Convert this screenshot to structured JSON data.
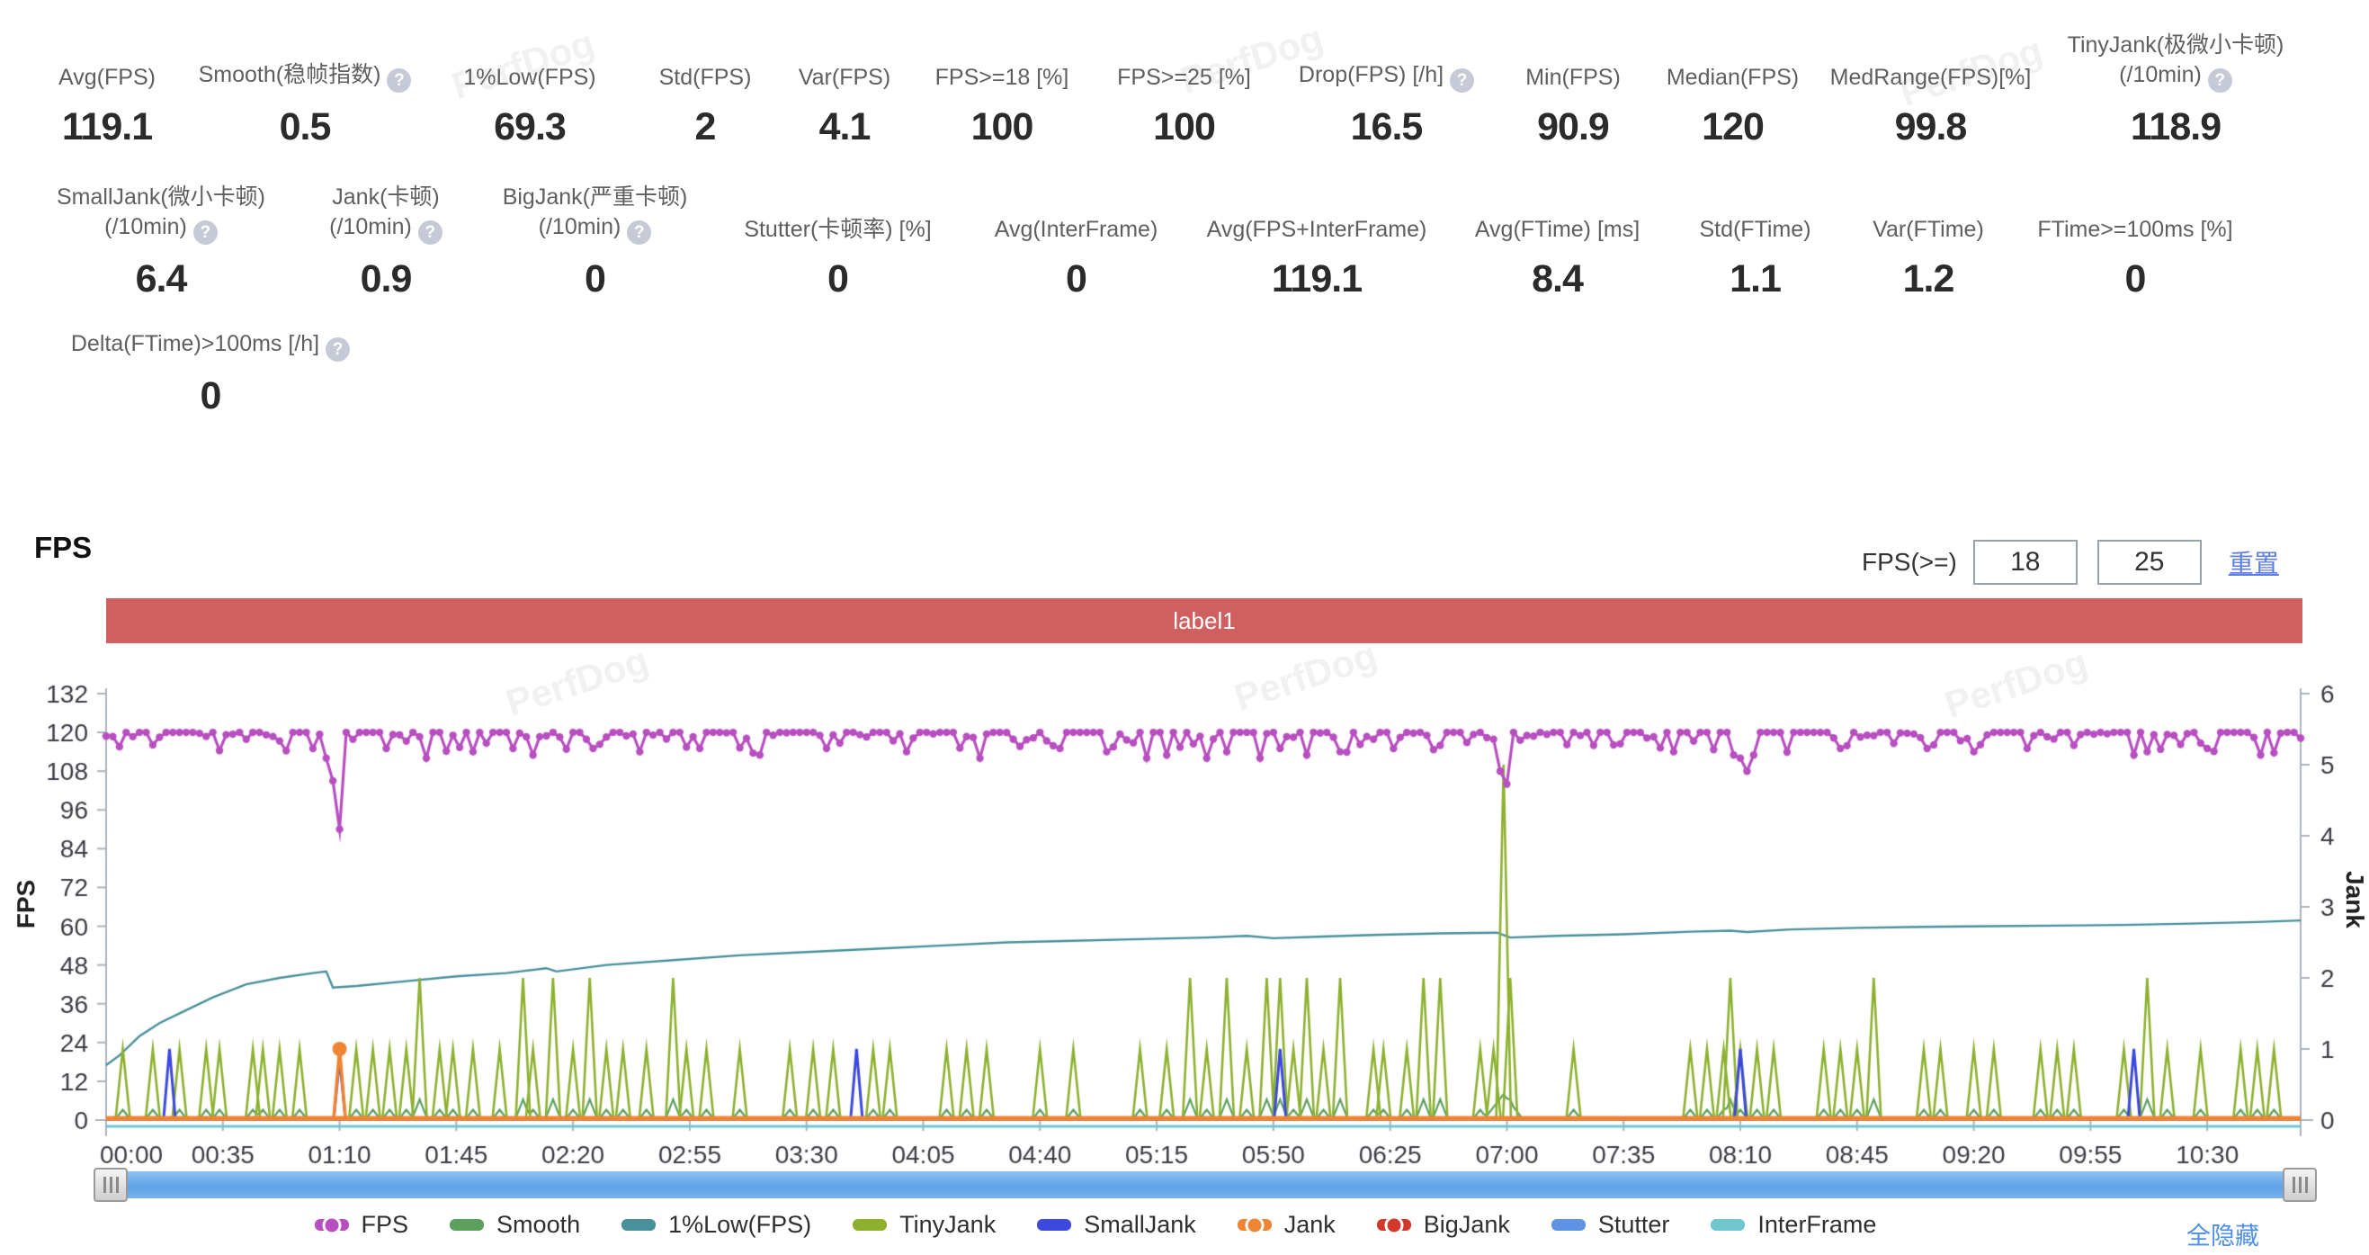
{
  "watermark_text": "PerfDog",
  "stats_row1": [
    {
      "label": "Avg(FPS)",
      "value": "119.1"
    },
    {
      "label": "Smooth(稳帧指数)",
      "help": true,
      "value": "0.5"
    },
    {
      "label": "1%Low(FPS)",
      "value": "69.3"
    },
    {
      "label": "Std(FPS)",
      "value": "2"
    },
    {
      "label": "Var(FPS)",
      "value": "4.1"
    },
    {
      "label": "FPS>=18 [%]",
      "value": "100"
    },
    {
      "label": "FPS>=25 [%]",
      "value": "100"
    },
    {
      "label": "Drop(FPS) [/h]",
      "help": true,
      "value": "16.5"
    },
    {
      "label": "Min(FPS)",
      "value": "90.9"
    },
    {
      "label": "Median(FPS)",
      "value": "120"
    },
    {
      "label": "MedRange(FPS)[%]",
      "value": "99.8"
    },
    {
      "label": "TinyJank(极微小卡顿)",
      "label2": "(/10min)",
      "help": true,
      "value": "118.9"
    }
  ],
  "stats_row2": [
    {
      "label": "SmallJank(微小卡顿)",
      "label2": "(/10min)",
      "help": true,
      "value": "6.4"
    },
    {
      "label": "Jank(卡顿)",
      "label2": "(/10min)",
      "help": true,
      "value": "0.9"
    },
    {
      "label": "BigJank(严重卡顿)",
      "label2": "(/10min)",
      "help": true,
      "value": "0"
    },
    {
      "label": "Stutter(卡顿率) [%]",
      "value": "0"
    },
    {
      "label": "Avg(InterFrame)",
      "value": "0"
    },
    {
      "label": "Avg(FPS+InterFrame)",
      "value": "119.1"
    },
    {
      "label": "Avg(FTime) [ms]",
      "value": "8.4"
    },
    {
      "label": "Std(FTime)",
      "value": "1.1"
    },
    {
      "label": "Var(FTime)",
      "value": "1.2"
    },
    {
      "label": "FTime>=100ms [%]",
      "value": "0"
    }
  ],
  "stats_row3": [
    {
      "label": "Delta(FTime)>100ms [/h]",
      "help": true,
      "value": "0"
    }
  ],
  "fps_section": {
    "title": "FPS",
    "filter_label": "FPS(>=)",
    "threshold1": "18",
    "threshold2": "25",
    "reset_label": "重置",
    "banner_label": "label1",
    "hide_all_label": "全隐藏"
  },
  "chart_data": {
    "type": "line",
    "title": "label1",
    "x_axis": {
      "tick_interval_s": 35,
      "range_s": [
        0,
        658
      ],
      "tick_labels": [
        "00:00",
        "00:35",
        "01:10",
        "01:45",
        "02:20",
        "02:55",
        "03:30",
        "04:05",
        "04:40",
        "05:15",
        "05:50",
        "06:25",
        "07:00",
        "07:35",
        "08:10",
        "08:45",
        "09:20",
        "09:55",
        "10:30"
      ]
    },
    "y_axis_left": {
      "label": "FPS",
      "range": [
        0,
        132
      ],
      "tick_step": 12
    },
    "y_axis_right": {
      "label": "Jank",
      "range": [
        0,
        6
      ],
      "tick_step": 1
    },
    "series": [
      {
        "name": "FPS",
        "color": "#b84fc0",
        "axis": "left",
        "style": "line+markers",
        "legend_marker": true,
        "base": 120,
        "sample_step_s": 2,
        "seed": 11,
        "dips": [
          [
            62,
            115
          ],
          [
            66,
            112
          ],
          [
            68,
            105
          ],
          [
            70,
            90
          ],
          [
            84,
            115
          ],
          [
            95,
            112
          ],
          [
            110,
            114
          ],
          [
            122,
            115
          ],
          [
            128,
            113
          ],
          [
            145,
            115
          ],
          [
            160,
            114
          ],
          [
            178,
            115
          ],
          [
            195,
            113
          ],
          [
            215,
            115
          ],
          [
            240,
            114
          ],
          [
            262,
            112
          ],
          [
            285,
            115
          ],
          [
            300,
            114
          ],
          [
            312,
            112
          ],
          [
            318,
            113
          ],
          [
            330,
            112
          ],
          [
            336,
            114
          ],
          [
            345,
            112
          ],
          [
            352,
            115
          ],
          [
            360,
            113
          ],
          [
            370,
            114
          ],
          [
            385,
            115
          ],
          [
            400,
            116
          ],
          [
            418,
            108
          ],
          [
            420,
            104
          ],
          [
            445,
            116
          ],
          [
            470,
            114
          ],
          [
            487,
            113
          ],
          [
            489,
            112
          ],
          [
            491,
            108
          ],
          [
            493,
            113
          ],
          [
            520,
            115
          ],
          [
            545,
            115
          ],
          [
            560,
            114
          ],
          [
            575,
            115
          ],
          [
            590,
            116
          ],
          [
            608,
            113
          ],
          [
            612,
            114
          ],
          [
            630,
            115
          ],
          [
            645,
            113
          ]
        ]
      },
      {
        "name": "Smooth",
        "color": "#5ca05e",
        "axis": "left",
        "style": "line",
        "base": 0.3,
        "bump_height": 3.2,
        "humps": [
          [
            419,
            8
          ]
        ]
      },
      {
        "name": "1%Low(FPS)",
        "color": "#48909a",
        "axis": "left",
        "style": "line",
        "points": [
          [
            0,
            17
          ],
          [
            4,
            20
          ],
          [
            10,
            26
          ],
          [
            16,
            30
          ],
          [
            24,
            34
          ],
          [
            32,
            38
          ],
          [
            42,
            42
          ],
          [
            52,
            44
          ],
          [
            62,
            45.5
          ],
          [
            66,
            46
          ],
          [
            68,
            41
          ],
          [
            75,
            41.5
          ],
          [
            90,
            43
          ],
          [
            105,
            44.5
          ],
          [
            120,
            45.5
          ],
          [
            132,
            47
          ],
          [
            135,
            46
          ],
          [
            150,
            48
          ],
          [
            170,
            49.5
          ],
          [
            190,
            51
          ],
          [
            210,
            52
          ],
          [
            230,
            53
          ],
          [
            250,
            54
          ],
          [
            270,
            55
          ],
          [
            290,
            55.5
          ],
          [
            310,
            56
          ],
          [
            330,
            56.5
          ],
          [
            342,
            57
          ],
          [
            350,
            56.3
          ],
          [
            365,
            56.8
          ],
          [
            380,
            57.3
          ],
          [
            400,
            57.8
          ],
          [
            417,
            58
          ],
          [
            421,
            56.5
          ],
          [
            435,
            57
          ],
          [
            455,
            57.5
          ],
          [
            475,
            58.3
          ],
          [
            487,
            58.6
          ],
          [
            492,
            58.2
          ],
          [
            505,
            59
          ],
          [
            525,
            59.5
          ],
          [
            545,
            59.8
          ],
          [
            565,
            60
          ],
          [
            585,
            60.2
          ],
          [
            605,
            60.4
          ],
          [
            625,
            60.8
          ],
          [
            645,
            61.3
          ],
          [
            658,
            61.8
          ]
        ]
      },
      {
        "name": "TinyJank",
        "color": "#8db12f",
        "axis": "right",
        "style": "spikes",
        "spike_half_width_s": 2.2,
        "spikes": [
          [
            5,
            1
          ],
          [
            14,
            1
          ],
          [
            22,
            1
          ],
          [
            30,
            1
          ],
          [
            34,
            1
          ],
          [
            44,
            1
          ],
          [
            47,
            1
          ],
          [
            52,
            1
          ],
          [
            58,
            1
          ],
          [
            75,
            1
          ],
          [
            80,
            1
          ],
          [
            85,
            1
          ],
          [
            90,
            1
          ],
          [
            94,
            2
          ],
          [
            100,
            1
          ],
          [
            104,
            1
          ],
          [
            110,
            1
          ],
          [
            118,
            1
          ],
          [
            125,
            2
          ],
          [
            128,
            1
          ],
          [
            134,
            2
          ],
          [
            140,
            1
          ],
          [
            145,
            2
          ],
          [
            150,
            1
          ],
          [
            155,
            1
          ],
          [
            162,
            1
          ],
          [
            170,
            2
          ],
          [
            174,
            1
          ],
          [
            180,
            1
          ],
          [
            190,
            1
          ],
          [
            205,
            1
          ],
          [
            212,
            1
          ],
          [
            218,
            1
          ],
          [
            230,
            1
          ],
          [
            235,
            1
          ],
          [
            252,
            1
          ],
          [
            258,
            1
          ],
          [
            264,
            1
          ],
          [
            280,
            1
          ],
          [
            290,
            1
          ],
          [
            310,
            1
          ],
          [
            318,
            1
          ],
          [
            325,
            2
          ],
          [
            330,
            1
          ],
          [
            336,
            2
          ],
          [
            342,
            1
          ],
          [
            348,
            2
          ],
          [
            352,
            2
          ],
          [
            356,
            1
          ],
          [
            360,
            2
          ],
          [
            365,
            1
          ],
          [
            370,
            2
          ],
          [
            380,
            1
          ],
          [
            383,
            1
          ],
          [
            390,
            1
          ],
          [
            395,
            2
          ],
          [
            400,
            2
          ],
          [
            412,
            1
          ],
          [
            416,
            1
          ],
          [
            419,
            5
          ],
          [
            421,
            2
          ],
          [
            440,
            1
          ],
          [
            475,
            1
          ],
          [
            480,
            1
          ],
          [
            485,
            1
          ],
          [
            487,
            2
          ],
          [
            490,
            1
          ],
          [
            495,
            1
          ],
          [
            500,
            1
          ],
          [
            515,
            1
          ],
          [
            520,
            1
          ],
          [
            525,
            1
          ],
          [
            530,
            2
          ],
          [
            545,
            1
          ],
          [
            550,
            1
          ],
          [
            560,
            1
          ],
          [
            566,
            1
          ],
          [
            580,
            1
          ],
          [
            585,
            1
          ],
          [
            590,
            1
          ],
          [
            605,
            1
          ],
          [
            612,
            2
          ],
          [
            618,
            1
          ],
          [
            628,
            1
          ],
          [
            640,
            1
          ],
          [
            645,
            1
          ],
          [
            650,
            1
          ]
        ]
      },
      {
        "name": "SmallJank",
        "color": "#3c48de",
        "axis": "right",
        "style": "spikes",
        "spike_half_width_s": 1.8,
        "spikes": [
          [
            19,
            1
          ],
          [
            70,
            0.85
          ],
          [
            225,
            1
          ],
          [
            352,
            1
          ],
          [
            490,
            1
          ],
          [
            608,
            1
          ]
        ]
      },
      {
        "name": "Jank",
        "color": "#ee8534",
        "axis": "right",
        "style": "baseline+spikes",
        "legend_marker": true,
        "spike_half_width_s": 1.8,
        "spikes": [
          [
            70,
            1
          ]
        ]
      },
      {
        "name": "BigJank",
        "color": "#d2392b",
        "axis": "right",
        "style": "baseline",
        "legend_marker": true,
        "spikes": []
      },
      {
        "name": "Stutter",
        "color": "#5e93e6",
        "axis": "right",
        "style": "baseline",
        "spikes": []
      },
      {
        "name": "InterFrame",
        "color": "#6fc6cf",
        "axis": "right",
        "style": "baseline",
        "spikes": []
      }
    ]
  }
}
